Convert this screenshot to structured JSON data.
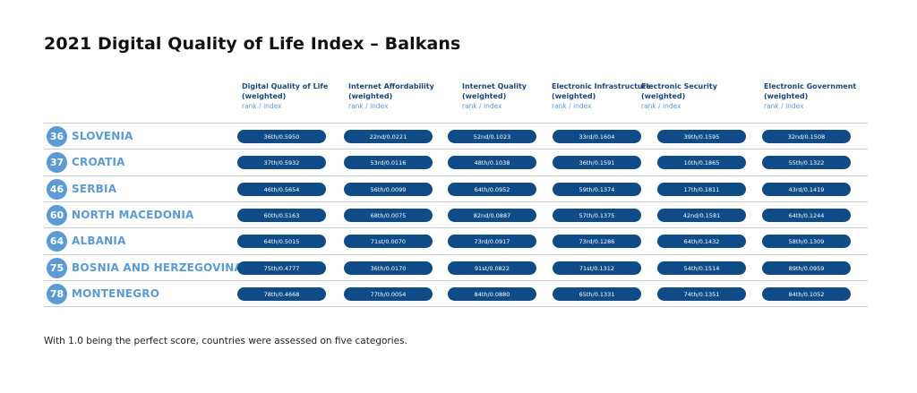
{
  "title": "2021 Digital Quality of Life Index – Balkans",
  "columns": [
    {
      "line1": "Digital Quality of Life",
      "line2": "(weighted)",
      "line3": "rank / index"
    },
    {
      "line1": "Internet Affordability",
      "line2": "(weighted)",
      "line3": "rank / index"
    },
    {
      "line1": "Internet Quality",
      "line2": "(weighted)",
      "line3": "rank / index"
    },
    {
      "line1": "Electronic Infrastructure",
      "line2": "(weighted)",
      "line3": "rank / index"
    },
    {
      "line1": "Electronic Security",
      "line2": "(weighted)",
      "line3": "rank / index"
    },
    {
      "line1": "Electronic Government",
      "line2": "(weighted)",
      "line3": "rank / index"
    }
  ],
  "rows": [
    {
      "rank": "36",
      "country": "SLOVENIA",
      "values": [
        "36th/0.5950",
        "22nd/0.0221",
        "52nd/0.1023",
        "33rd/0.1604",
        "39th/0.1595",
        "32nd/0.1508"
      ]
    },
    {
      "rank": "37",
      "country": "CROATIA",
      "values": [
        "37th/0.5932",
        "53rd/0.0116",
        "48th/0.1038",
        "36th/0.1591",
        "10th/0.1865",
        "55th/0.1322"
      ]
    },
    {
      "rank": "46",
      "country": "SERBIA",
      "values": [
        "46th/0.5654",
        "56th/0.0099",
        "64th/0.0952",
        "59th/0.1374",
        "17th/0.1811",
        "43rd/0.1419"
      ]
    },
    {
      "rank": "60",
      "country": "NORTH MACEDONIA",
      "values": [
        "60th/0.5163",
        "68th/0.0075",
        "82nd/0.0887",
        "57th/0.1375",
        "42nd/0.1581",
        "64th/0.1244"
      ]
    },
    {
      "rank": "64",
      "country": "ALBANIA",
      "values": [
        "64th/0.5015",
        "71st/0.0070",
        "73rd/0.0917",
        "73rd/0.1286",
        "64th/0.1432",
        "58th/0.1309"
      ]
    },
    {
      "rank": "75",
      "country": "BOSNIA AND HERZEGOVINA",
      "values": [
        "75th/0.4777",
        "36th/0.0170",
        "91st/0.0822",
        "71st/0.1312",
        "54th/0.1514",
        "89th/0.0959"
      ]
    },
    {
      "rank": "78",
      "country": "MONTENEGRO",
      "values": [
        "78th/0.4668",
        "77th/0.0054",
        "84th/0.0880",
        "65th/0.1331",
        "74th/0.1351",
        "84th/0.1052"
      ]
    }
  ],
  "footnote": "With 1.0 being the perfect score, countries were assessed on five categories.",
  "colors": {
    "accent": "#5b9bd5",
    "pill": "#0f4c87",
    "header": "#1b4780"
  }
}
